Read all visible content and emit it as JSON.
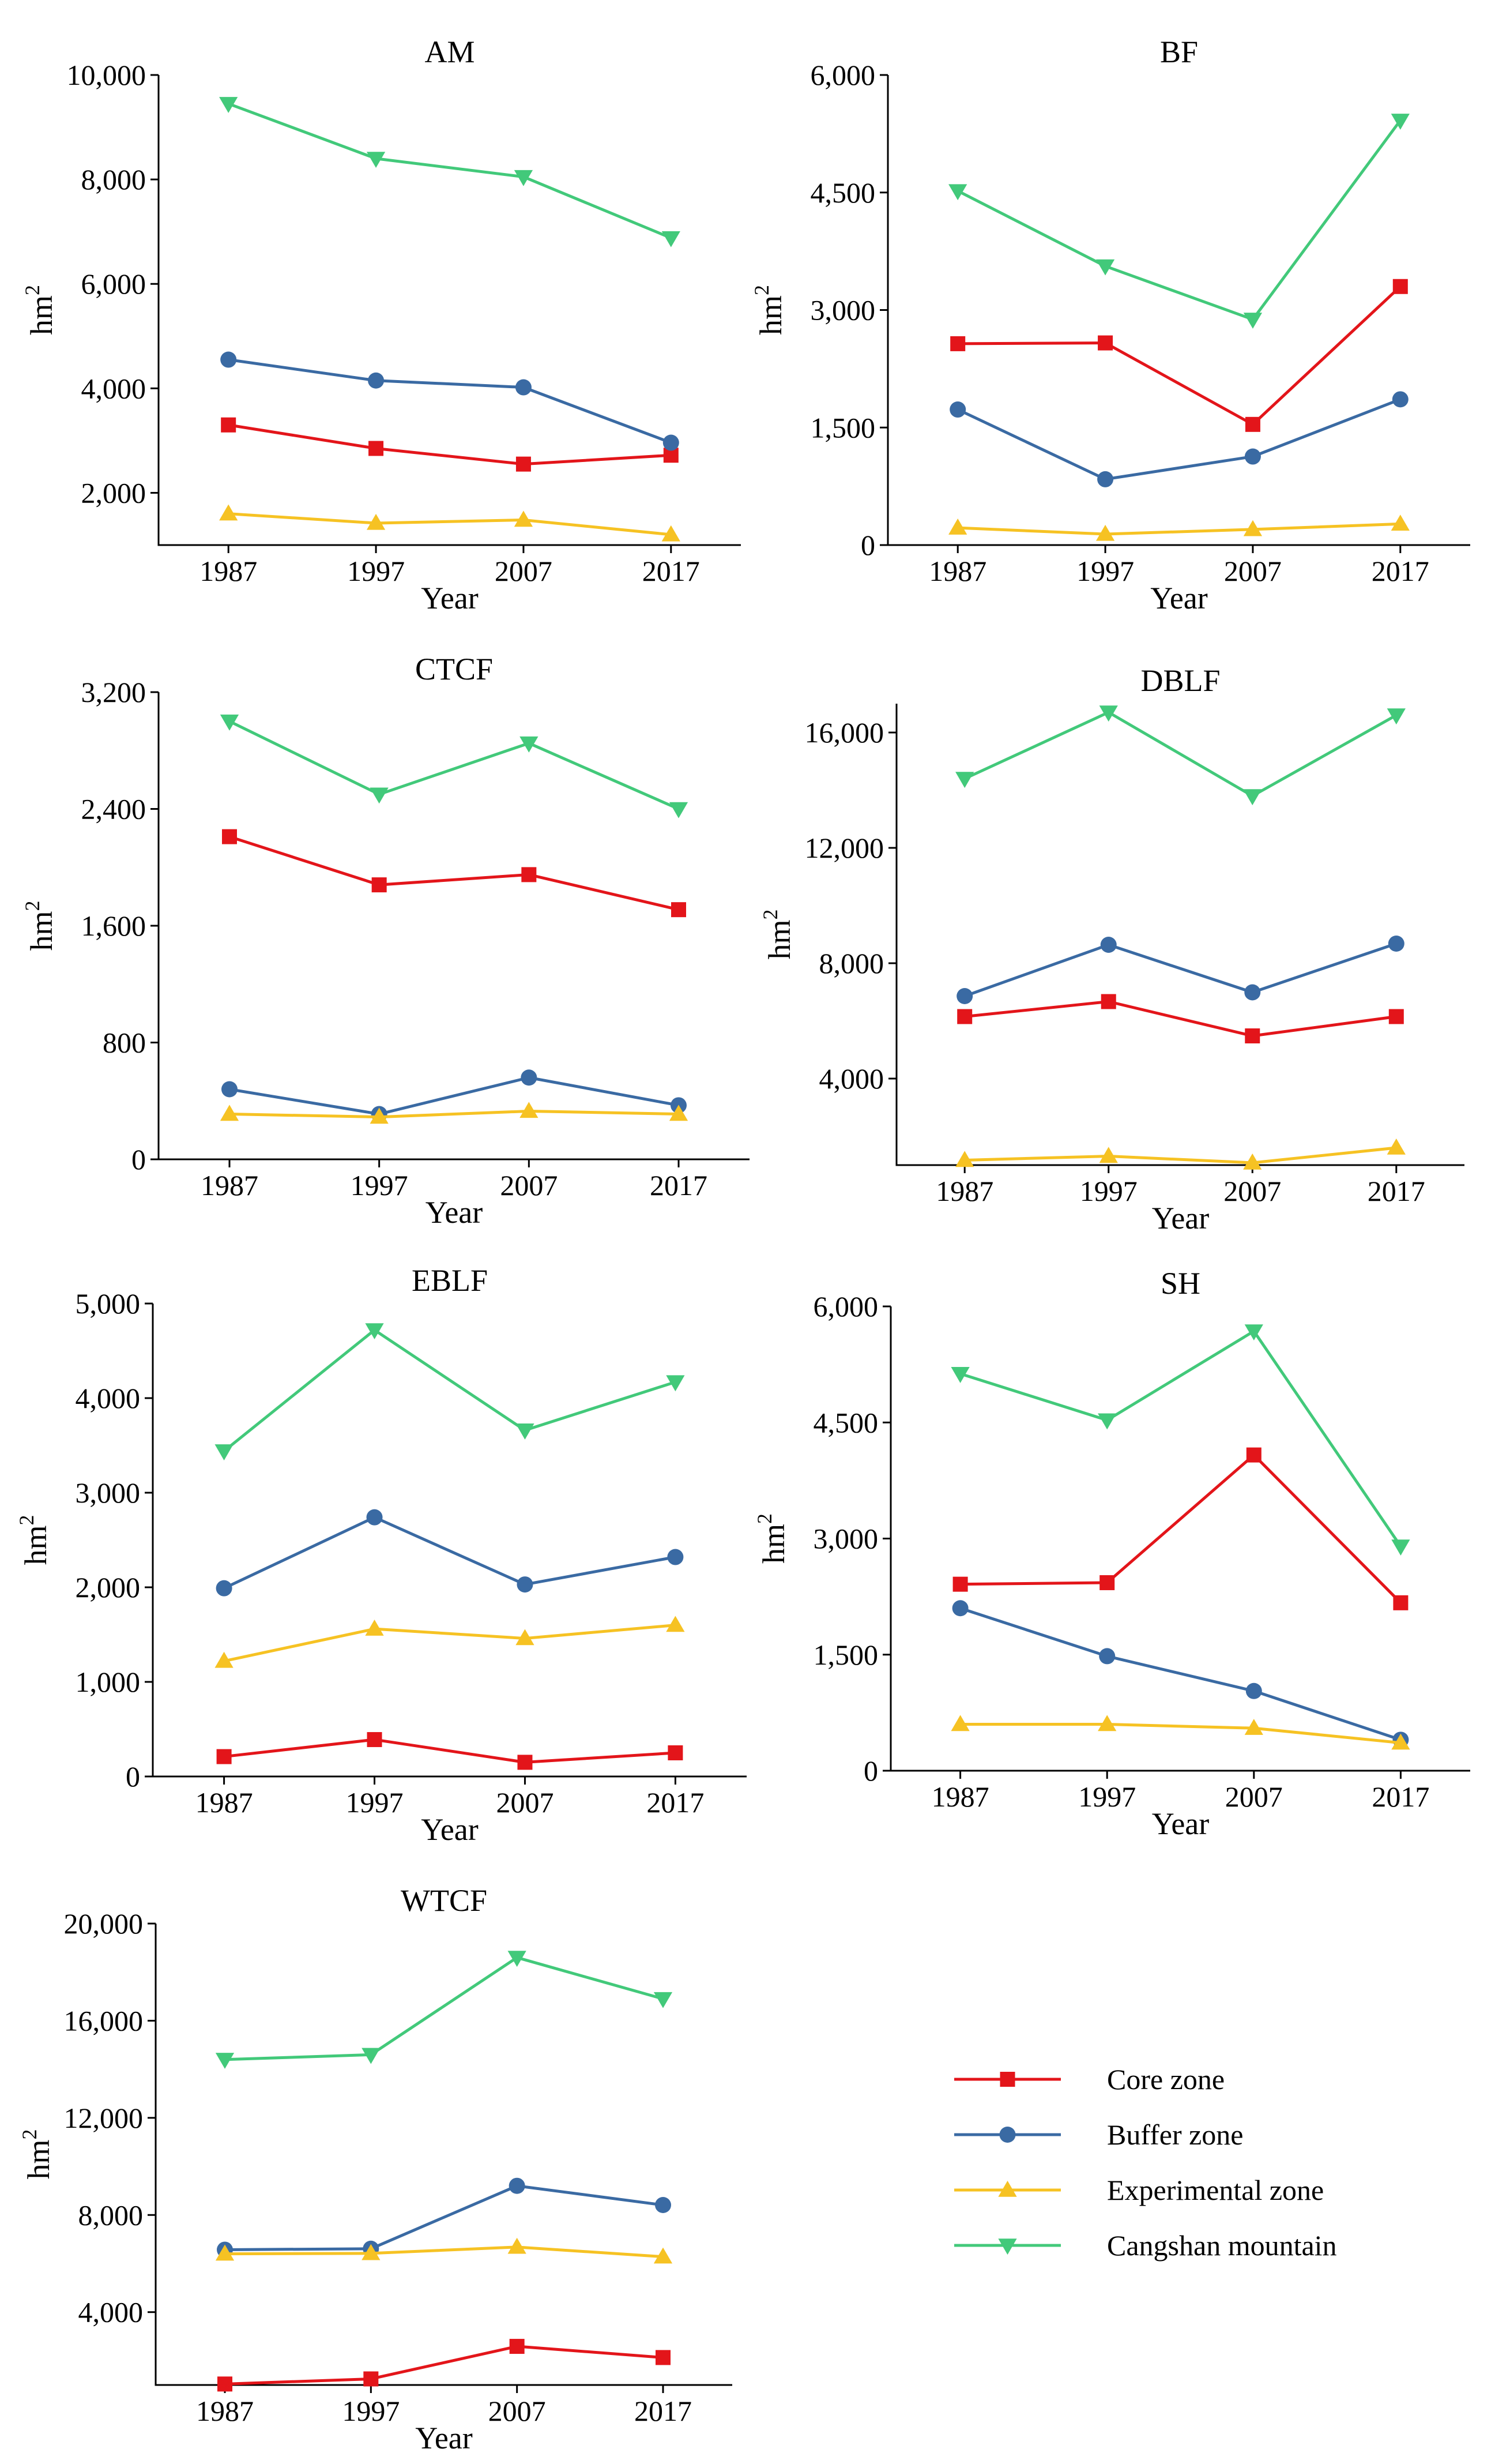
{
  "colors": {
    "core": "#e3151a",
    "buffer": "#3a6aa3",
    "experimental": "#f6c223",
    "cangshan": "#42c97a"
  },
  "legend": [
    {
      "key": "core",
      "label": "Core zone",
      "marker": "square"
    },
    {
      "key": "buffer",
      "label": "Buffer zone",
      "marker": "circle"
    },
    {
      "key": "experimental",
      "label": "Experimental zone",
      "marker": "triangle-up"
    },
    {
      "key": "cangshan",
      "label": "Cangshan mountain",
      "marker": "triangle-down"
    }
  ],
  "chart_data": [
    {
      "id": "am",
      "type": "line",
      "title": "AM",
      "xlabel": "Year",
      "ylabel": "hm2",
      "x": [
        "1987",
        "1997",
        "2007",
        "2017"
      ],
      "ylim": [
        1000,
        10000
      ],
      "yticks": [
        2000,
        4000,
        6000,
        8000,
        10000
      ],
      "ytick_labels": [
        "2,000",
        "4,000",
        "6,000",
        "8,000",
        "10,000"
      ],
      "series": [
        {
          "key": "core",
          "name": "Core zone",
          "values": [
            3300,
            2850,
            2550,
            2720
          ]
        },
        {
          "key": "buffer",
          "name": "Buffer zone",
          "values": [
            4550,
            4150,
            4020,
            2960
          ]
        },
        {
          "key": "experimental",
          "name": "Experimental zone",
          "values": [
            1600,
            1420,
            1480,
            1200
          ]
        },
        {
          "key": "cangshan",
          "name": "Cangshan mountain",
          "values": [
            9450,
            8400,
            8050,
            6880
          ]
        }
      ]
    },
    {
      "id": "bf",
      "type": "line",
      "title": "BF",
      "xlabel": "Year",
      "ylabel": "hm2",
      "x": [
        "1987",
        "1997",
        "2007",
        "2017"
      ],
      "ylim": [
        0,
        6000
      ],
      "yticks": [
        0,
        1500,
        3000,
        4500,
        6000
      ],
      "ytick_labels": [
        "0",
        "1,500",
        "3,000",
        "4,500",
        "6,000"
      ],
      "series": [
        {
          "key": "core",
          "name": "Core zone",
          "values": [
            2570,
            2580,
            1540,
            3300
          ]
        },
        {
          "key": "buffer",
          "name": "Buffer zone",
          "values": [
            1730,
            840,
            1130,
            1860
          ]
        },
        {
          "key": "experimental",
          "name": "Experimental zone",
          "values": [
            220,
            140,
            200,
            270
          ]
        },
        {
          "key": "cangshan",
          "name": "Cangshan mountain",
          "values": [
            4520,
            3560,
            2880,
            5420
          ]
        }
      ]
    },
    {
      "id": "ctcf",
      "type": "line",
      "title": "CTCF",
      "xlabel": "Year",
      "ylabel": "hm2",
      "x": [
        "1987",
        "1997",
        "2007",
        "2017"
      ],
      "ylim": [
        0,
        3200
      ],
      "yticks": [
        0,
        800,
        1600,
        2400,
        3200
      ],
      "ytick_labels": [
        "0",
        "800",
        "1,600",
        "2,400",
        "3,200"
      ],
      "series": [
        {
          "key": "core",
          "name": "Core zone",
          "values": [
            2210,
            1880,
            1950,
            1710
          ]
        },
        {
          "key": "buffer",
          "name": "Buffer zone",
          "values": [
            480,
            310,
            560,
            370
          ]
        },
        {
          "key": "experimental",
          "name": "Experimental zone",
          "values": [
            310,
            290,
            330,
            310
          ]
        },
        {
          "key": "cangshan",
          "name": "Cangshan mountain",
          "values": [
            3000,
            2500,
            2850,
            2400
          ]
        }
      ]
    },
    {
      "id": "dblf",
      "type": "line",
      "title": "DBLF",
      "xlabel": "Year",
      "ylabel": "hm2",
      "x": [
        "1987",
        "1997",
        "2007",
        "2017"
      ],
      "ylim": [
        1000,
        17000
      ],
      "yticks": [
        4000,
        8000,
        12000,
        16000
      ],
      "ytick_labels": [
        "4,000",
        "8,000",
        "12,000",
        "16,000"
      ],
      "series": [
        {
          "key": "core",
          "name": "Core zone",
          "values": [
            6150,
            6670,
            5480,
            6150
          ]
        },
        {
          "key": "buffer",
          "name": "Buffer zone",
          "values": [
            6860,
            8640,
            6990,
            8680
          ]
        },
        {
          "key": "experimental",
          "name": "Experimental zone",
          "values": [
            1170,
            1310,
            1080,
            1600
          ]
        },
        {
          "key": "cangshan",
          "name": "Cangshan mountain",
          "values": [
            14400,
            16700,
            13800,
            16600
          ]
        }
      ]
    },
    {
      "id": "eblf",
      "type": "line",
      "title": "EBLF",
      "xlabel": "Year",
      "ylabel": "hm2",
      "x": [
        "1987",
        "1997",
        "2007",
        "2017"
      ],
      "ylim": [
        0,
        5000
      ],
      "yticks": [
        0,
        1000,
        2000,
        3000,
        4000,
        5000
      ],
      "ytick_labels": [
        "0",
        "1,000",
        "2,000",
        "3,000",
        "4,000",
        "5,000"
      ],
      "series": [
        {
          "key": "core",
          "name": "Core zone",
          "values": [
            210,
            390,
            150,
            250
          ]
        },
        {
          "key": "buffer",
          "name": "Buffer zone",
          "values": [
            1990,
            2740,
            2030,
            2320
          ]
        },
        {
          "key": "experimental",
          "name": "Experimental zone",
          "values": [
            1220,
            1560,
            1460,
            1600
          ]
        },
        {
          "key": "cangshan",
          "name": "Cangshan mountain",
          "values": [
            3440,
            4720,
            3660,
            4170
          ]
        }
      ]
    },
    {
      "id": "sh",
      "type": "line",
      "title": "SH",
      "xlabel": "Year",
      "ylabel": "hm2",
      "x": [
        "1987",
        "1997",
        "2007",
        "2017"
      ],
      "ylim": [
        0,
        6000
      ],
      "yticks": [
        0,
        1500,
        3000,
        4500,
        6000
      ],
      "ytick_labels": [
        "0",
        "1,500",
        "3,000",
        "4,500",
        "6,000"
      ],
      "series": [
        {
          "key": "core",
          "name": "Core zone",
          "values": [
            2410,
            2430,
            4080,
            2170
          ]
        },
        {
          "key": "buffer",
          "name": "Buffer zone",
          "values": [
            2100,
            1480,
            1030,
            400
          ]
        },
        {
          "key": "experimental",
          "name": "Experimental zone",
          "values": [
            600,
            600,
            550,
            360
          ]
        },
        {
          "key": "cangshan",
          "name": "Cangshan mountain",
          "values": [
            5130,
            4530,
            5680,
            2900
          ]
        }
      ]
    },
    {
      "id": "wtcf",
      "type": "line",
      "title": "WTCF",
      "xlabel": "Year",
      "ylabel": "hm2",
      "x": [
        "1987",
        "1997",
        "2007",
        "2017"
      ],
      "ylim": [
        1000,
        20000
      ],
      "yticks": [
        4000,
        8000,
        12000,
        16000,
        20000
      ],
      "ytick_labels": [
        "4,000",
        "8,000",
        "12,000",
        "16,000",
        "20,000"
      ],
      "series": [
        {
          "key": "core",
          "name": "Core zone",
          "values": [
            1040,
            1250,
            2590,
            2130
          ]
        },
        {
          "key": "buffer",
          "name": "Buffer zone",
          "values": [
            6570,
            6610,
            9200,
            8410
          ]
        },
        {
          "key": "experimental",
          "name": "Experimental zone",
          "values": [
            6400,
            6420,
            6680,
            6280
          ]
        },
        {
          "key": "cangshan",
          "name": "Cangshan mountain",
          "values": [
            14400,
            14600,
            18600,
            16900
          ]
        }
      ]
    }
  ]
}
